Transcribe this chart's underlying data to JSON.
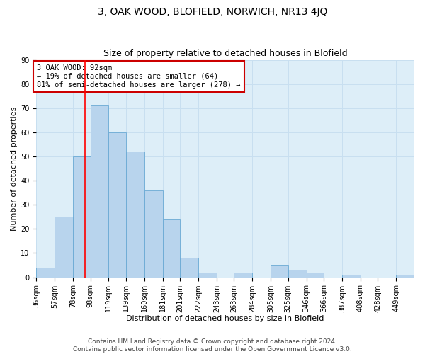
{
  "title": "3, OAK WOOD, BLOFIELD, NORWICH, NR13 4JQ",
  "subtitle": "Size of property relative to detached houses in Blofield",
  "xlabel": "Distribution of detached houses by size in Blofield",
  "ylabel": "Number of detached properties",
  "bin_labels": [
    "36sqm",
    "57sqm",
    "78sqm",
    "98sqm",
    "119sqm",
    "139sqm",
    "160sqm",
    "181sqm",
    "201sqm",
    "222sqm",
    "243sqm",
    "263sqm",
    "284sqm",
    "305sqm",
    "325sqm",
    "346sqm",
    "366sqm",
    "387sqm",
    "408sqm",
    "428sqm",
    "449sqm"
  ],
  "bin_edges": [
    36,
    57,
    78,
    98,
    119,
    139,
    160,
    181,
    201,
    222,
    243,
    263,
    284,
    305,
    325,
    346,
    366,
    387,
    408,
    428,
    449
  ],
  "bar_heights": [
    4,
    25,
    50,
    71,
    60,
    52,
    36,
    24,
    8,
    2,
    0,
    2,
    0,
    5,
    3,
    2,
    0,
    1,
    0,
    0,
    1
  ],
  "bar_color": "#b8d4ed",
  "bar_edge_color": "#6aaad4",
  "property_value": 92,
  "vline_color": "red",
  "annotation_line1": "3 OAK WOOD: 92sqm",
  "annotation_line2": "← 19% of detached houses are smaller (64)",
  "annotation_line3": "81% of semi-detached houses are larger (278) →",
  "annotation_box_edge": "#cc0000",
  "ylim": [
    0,
    90
  ],
  "yticks": [
    0,
    10,
    20,
    30,
    40,
    50,
    60,
    70,
    80,
    90
  ],
  "grid_color": "#c8dff0",
  "bg_color": "#ddeef8",
  "footer1": "Contains HM Land Registry data © Crown copyright and database right 2024.",
  "footer2": "Contains public sector information licensed under the Open Government Licence v3.0.",
  "title_fontsize": 10,
  "subtitle_fontsize": 9,
  "label_fontsize": 8,
  "tick_fontsize": 7,
  "annotation_fontsize": 7.5,
  "footer_fontsize": 6.5
}
